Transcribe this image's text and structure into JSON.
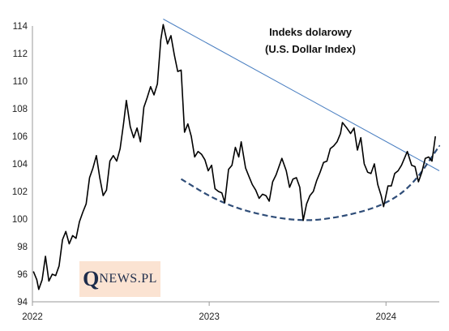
{
  "chart_data": {
    "type": "line",
    "title_line1": "Indeks dolarowy",
    "title_line2": "(U.S. Dollar Index)",
    "xlabel": "",
    "ylabel": "",
    "x_range": [
      "2022-01-01",
      "2024-04-20"
    ],
    "ylim": [
      94,
      114
    ],
    "y_ticks": [
      94,
      96,
      98,
      100,
      102,
      104,
      106,
      108,
      110,
      112,
      114
    ],
    "x_ticks": [
      {
        "label": "2022",
        "date": "2022-01-01"
      },
      {
        "label": "2023",
        "date": "2023-01-01"
      },
      {
        "label": "2024",
        "date": "2024-01-01"
      }
    ],
    "grid": false,
    "series": [
      {
        "color": "#000000",
        "points": [
          [
            "2022-01-03",
            96.2
          ],
          [
            "2022-01-10",
            95.6
          ],
          [
            "2022-01-14",
            94.9
          ],
          [
            "2022-01-21",
            95.6
          ],
          [
            "2022-01-28",
            97.3
          ],
          [
            "2022-02-04",
            95.5
          ],
          [
            "2022-02-11",
            96.0
          ],
          [
            "2022-02-18",
            95.9
          ],
          [
            "2022-02-25",
            96.6
          ],
          [
            "2022-03-04",
            98.5
          ],
          [
            "2022-03-11",
            99.1
          ],
          [
            "2022-03-18",
            98.2
          ],
          [
            "2022-03-25",
            98.8
          ],
          [
            "2022-04-01",
            98.6
          ],
          [
            "2022-04-08",
            99.8
          ],
          [
            "2022-04-15",
            100.5
          ],
          [
            "2022-04-22",
            101.1
          ],
          [
            "2022-04-29",
            103.0
          ],
          [
            "2022-05-06",
            103.7
          ],
          [
            "2022-05-13",
            104.6
          ],
          [
            "2022-05-20",
            103.0
          ],
          [
            "2022-05-27",
            101.7
          ],
          [
            "2022-06-03",
            102.1
          ],
          [
            "2022-06-10",
            104.2
          ],
          [
            "2022-06-17",
            104.6
          ],
          [
            "2022-06-24",
            104.2
          ],
          [
            "2022-07-01",
            105.1
          ],
          [
            "2022-07-08",
            106.9
          ],
          [
            "2022-07-14",
            108.6
          ],
          [
            "2022-07-22",
            106.7
          ],
          [
            "2022-07-29",
            105.9
          ],
          [
            "2022-08-05",
            106.6
          ],
          [
            "2022-08-12",
            105.6
          ],
          [
            "2022-08-19",
            108.1
          ],
          [
            "2022-08-26",
            108.8
          ],
          [
            "2022-09-02",
            109.6
          ],
          [
            "2022-09-09",
            109.0
          ],
          [
            "2022-09-16",
            109.8
          ],
          [
            "2022-09-23",
            113.0
          ],
          [
            "2022-09-28",
            114.1
          ],
          [
            "2022-10-07",
            112.7
          ],
          [
            "2022-10-14",
            113.3
          ],
          [
            "2022-10-21",
            111.9
          ],
          [
            "2022-10-28",
            110.7
          ],
          [
            "2022-11-04",
            110.8
          ],
          [
            "2022-11-11",
            106.3
          ],
          [
            "2022-11-18",
            106.9
          ],
          [
            "2022-11-25",
            106.0
          ],
          [
            "2022-12-02",
            104.5
          ],
          [
            "2022-12-09",
            104.9
          ],
          [
            "2022-12-16",
            104.7
          ],
          [
            "2022-12-23",
            104.3
          ],
          [
            "2022-12-30",
            103.5
          ],
          [
            "2023-01-06",
            103.9
          ],
          [
            "2023-01-13",
            102.2
          ],
          [
            "2023-01-20",
            102.0
          ],
          [
            "2023-01-27",
            101.9
          ],
          [
            "2023-02-02",
            101.2
          ],
          [
            "2023-02-10",
            103.6
          ],
          [
            "2023-02-17",
            103.9
          ],
          [
            "2023-02-24",
            105.2
          ],
          [
            "2023-03-03",
            104.5
          ],
          [
            "2023-03-08",
            105.6
          ],
          [
            "2023-03-17",
            103.7
          ],
          [
            "2023-03-24",
            103.1
          ],
          [
            "2023-03-31",
            102.5
          ],
          [
            "2023-04-07",
            102.1
          ],
          [
            "2023-04-14",
            101.5
          ],
          [
            "2023-04-21",
            101.8
          ],
          [
            "2023-04-28",
            101.7
          ],
          [
            "2023-05-05",
            101.3
          ],
          [
            "2023-05-12",
            102.7
          ],
          [
            "2023-05-19",
            103.2
          ],
          [
            "2023-05-31",
            104.4
          ],
          [
            "2023-06-09",
            103.5
          ],
          [
            "2023-06-16",
            102.3
          ],
          [
            "2023-06-23",
            102.9
          ],
          [
            "2023-06-30",
            103.0
          ],
          [
            "2023-07-07",
            102.3
          ],
          [
            "2023-07-14",
            99.9
          ],
          [
            "2023-07-21",
            101.1
          ],
          [
            "2023-07-28",
            101.7
          ],
          [
            "2023-08-04",
            102.0
          ],
          [
            "2023-08-11",
            102.8
          ],
          [
            "2023-08-18",
            103.4
          ],
          [
            "2023-08-25",
            104.1
          ],
          [
            "2023-09-01",
            104.2
          ],
          [
            "2023-09-08",
            105.1
          ],
          [
            "2023-09-15",
            105.3
          ],
          [
            "2023-09-22",
            105.6
          ],
          [
            "2023-09-29",
            106.2
          ],
          [
            "2023-10-03",
            107.0
          ],
          [
            "2023-10-12",
            106.6
          ],
          [
            "2023-10-20",
            106.2
          ],
          [
            "2023-10-27",
            106.6
          ],
          [
            "2023-11-03",
            105.0
          ],
          [
            "2023-11-10",
            105.9
          ],
          [
            "2023-11-17",
            104.0
          ],
          [
            "2023-11-24",
            103.4
          ],
          [
            "2023-12-01",
            103.3
          ],
          [
            "2023-12-08",
            104.0
          ],
          [
            "2023-12-15",
            102.5
          ],
          [
            "2023-12-22",
            101.7
          ],
          [
            "2023-12-27",
            100.9
          ],
          [
            "2024-01-05",
            102.4
          ],
          [
            "2024-01-12",
            102.4
          ],
          [
            "2024-01-19",
            103.3
          ],
          [
            "2024-01-26",
            103.5
          ],
          [
            "2024-02-02",
            103.9
          ],
          [
            "2024-02-14",
            104.9
          ],
          [
            "2024-02-23",
            103.9
          ],
          [
            "2024-03-01",
            103.8
          ],
          [
            "2024-03-08",
            102.7
          ],
          [
            "2024-03-15",
            103.4
          ],
          [
            "2024-03-22",
            104.4
          ],
          [
            "2024-03-29",
            104.5
          ],
          [
            "2024-04-05",
            104.2
          ],
          [
            "2024-04-12",
            106.0
          ]
        ]
      }
    ],
    "trendline": {
      "color": "#4a7fc1",
      "points": [
        [
          "2022-09-28",
          114.5
        ],
        [
          "2024-04-20",
          103.5
        ]
      ]
    },
    "cup_curve": {
      "color": "#2f4d78",
      "style": "dashed",
      "points": [
        [
          "2022-11-04",
          102.9
        ],
        [
          "2023-01-13",
          101.4
        ],
        [
          "2023-04-01",
          100.4
        ],
        [
          "2023-07-14",
          99.8
        ],
        [
          "2023-10-08",
          100.2
        ],
        [
          "2023-12-27",
          101.0
        ],
        [
          "2024-02-24",
          102.4
        ],
        [
          "2024-04-20",
          105.3
        ]
      ]
    }
  },
  "logo": {
    "q": "Q",
    "rest": "NEWS.PL"
  }
}
